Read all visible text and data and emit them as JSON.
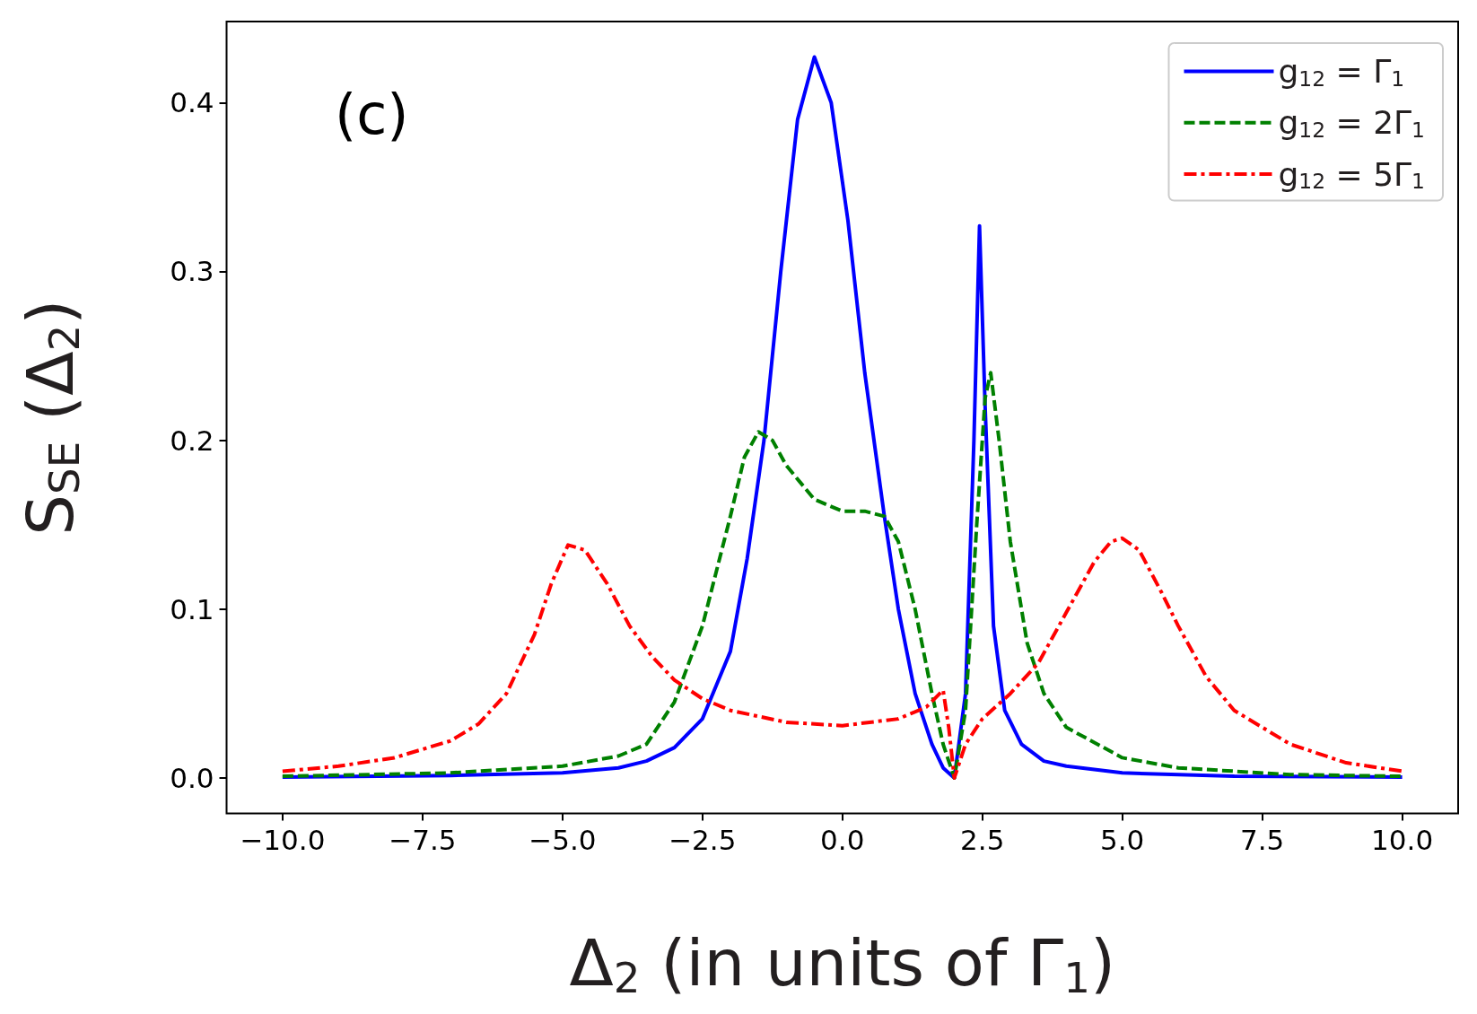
{
  "chart_data": {
    "type": "line",
    "xlabel": "Δ$_{2}$ (in units of Γ$_{1}$)",
    "ylabel": "S$_{SE}$ (Δ$_{2}$)",
    "annotations": [
      "(c)"
    ],
    "legend": "top right",
    "grid": false,
    "marker": "none",
    "xlim": [
      -11,
      11
    ],
    "ylim": [
      -0.021,
      0.448
    ],
    "xticks": [
      {
        "value": -10,
        "label": "−10.0"
      },
      {
        "value": -7.5,
        "label": "−7.5"
      },
      {
        "value": -5,
        "label": "−5.0"
      },
      {
        "value": -2.5,
        "label": "−2.5"
      },
      {
        "value": 0,
        "label": "0.0"
      },
      {
        "value": 2.5,
        "label": "2.5"
      },
      {
        "value": 5,
        "label": "5.0"
      },
      {
        "value": 7.5,
        "label": "7.5"
      },
      {
        "value": 10,
        "label": "10.0"
      }
    ],
    "yticks": [
      {
        "value": 0,
        "label": "0.0"
      },
      {
        "value": 0.1,
        "label": "0.1"
      },
      {
        "value": 0.2,
        "label": "0.2"
      },
      {
        "value": 0.3,
        "label": "0.3"
      },
      {
        "value": 0.4,
        "label": "0.4"
      }
    ],
    "series": [
      {
        "name": "g$_{12}$ = Γ$_{1}$",
        "color": "#0000ff",
        "line_style": "solid",
        "x": [
          -10,
          -7,
          -5,
          -4,
          -3.5,
          -3,
          -2.5,
          -2,
          -1.7,
          -1.4,
          -1.1,
          -0.8,
          -0.5,
          -0.2,
          0.1,
          0.4,
          0.75,
          1.0,
          1.3,
          1.6,
          1.8,
          2.0,
          2.2,
          2.35,
          2.45,
          2.55,
          2.7,
          2.9,
          3.2,
          3.6,
          4,
          5,
          7,
          10
        ],
        "values": [
          0.0005,
          0.0015,
          0.003,
          0.006,
          0.01,
          0.018,
          0.035,
          0.075,
          0.13,
          0.2,
          0.3,
          0.39,
          0.427,
          0.4,
          0.33,
          0.24,
          0.155,
          0.1,
          0.05,
          0.02,
          0.006,
          0,
          0.05,
          0.2,
          0.327,
          0.22,
          0.09,
          0.04,
          0.02,
          0.01,
          0.007,
          0.003,
          0.001,
          0.0005
        ]
      },
      {
        "name": "g$_{12}$ = 2Γ$_{1}$",
        "color": "#008000",
        "line_style": "dashed",
        "x": [
          -10,
          -7,
          -5,
          -4,
          -3.5,
          -3,
          -2.5,
          -2,
          -1.75,
          -1.5,
          -1.25,
          -1,
          -0.5,
          0,
          0.4,
          0.75,
          1.0,
          1.3,
          1.6,
          1.8,
          2.0,
          2.2,
          2.4,
          2.55,
          2.65,
          2.8,
          3.0,
          3.3,
          3.6,
          4,
          5,
          6,
          8,
          10
        ],
        "values": [
          0.001,
          0.003,
          0.007,
          0.013,
          0.02,
          0.045,
          0.09,
          0.155,
          0.19,
          0.205,
          0.2,
          0.185,
          0.165,
          0.158,
          0.158,
          0.155,
          0.14,
          0.1,
          0.05,
          0.02,
          0,
          0.04,
          0.15,
          0.225,
          0.24,
          0.2,
          0.14,
          0.08,
          0.05,
          0.03,
          0.012,
          0.006,
          0.002,
          0.001
        ]
      },
      {
        "name": "g$_{12}$ = 5Γ$_{1}$",
        "color": "#ff0000",
        "line_style": "dashdot",
        "x": [
          -10,
          -9,
          -8,
          -7,
          -6.5,
          -6,
          -5.5,
          -5.2,
          -4.9,
          -4.6,
          -4.2,
          -3.8,
          -3.4,
          -3,
          -2.5,
          -2,
          -1,
          0,
          1,
          1.5,
          1.8,
          1.9,
          2.0,
          2.2,
          2.5,
          3,
          3.5,
          4,
          4.5,
          4.8,
          5,
          5.3,
          5.7,
          6,
          6.5,
          7,
          8,
          9,
          10
        ],
        "values": [
          0.004,
          0.007,
          0.012,
          0.022,
          0.032,
          0.05,
          0.085,
          0.115,
          0.138,
          0.135,
          0.115,
          0.09,
          0.072,
          0.058,
          0.047,
          0.04,
          0.033,
          0.031,
          0.035,
          0.042,
          0.052,
          0.03,
          0,
          0.02,
          0.035,
          0.05,
          0.068,
          0.098,
          0.128,
          0.14,
          0.142,
          0.135,
          0.11,
          0.09,
          0.06,
          0.04,
          0.02,
          0.009,
          0.004
        ]
      }
    ]
  }
}
